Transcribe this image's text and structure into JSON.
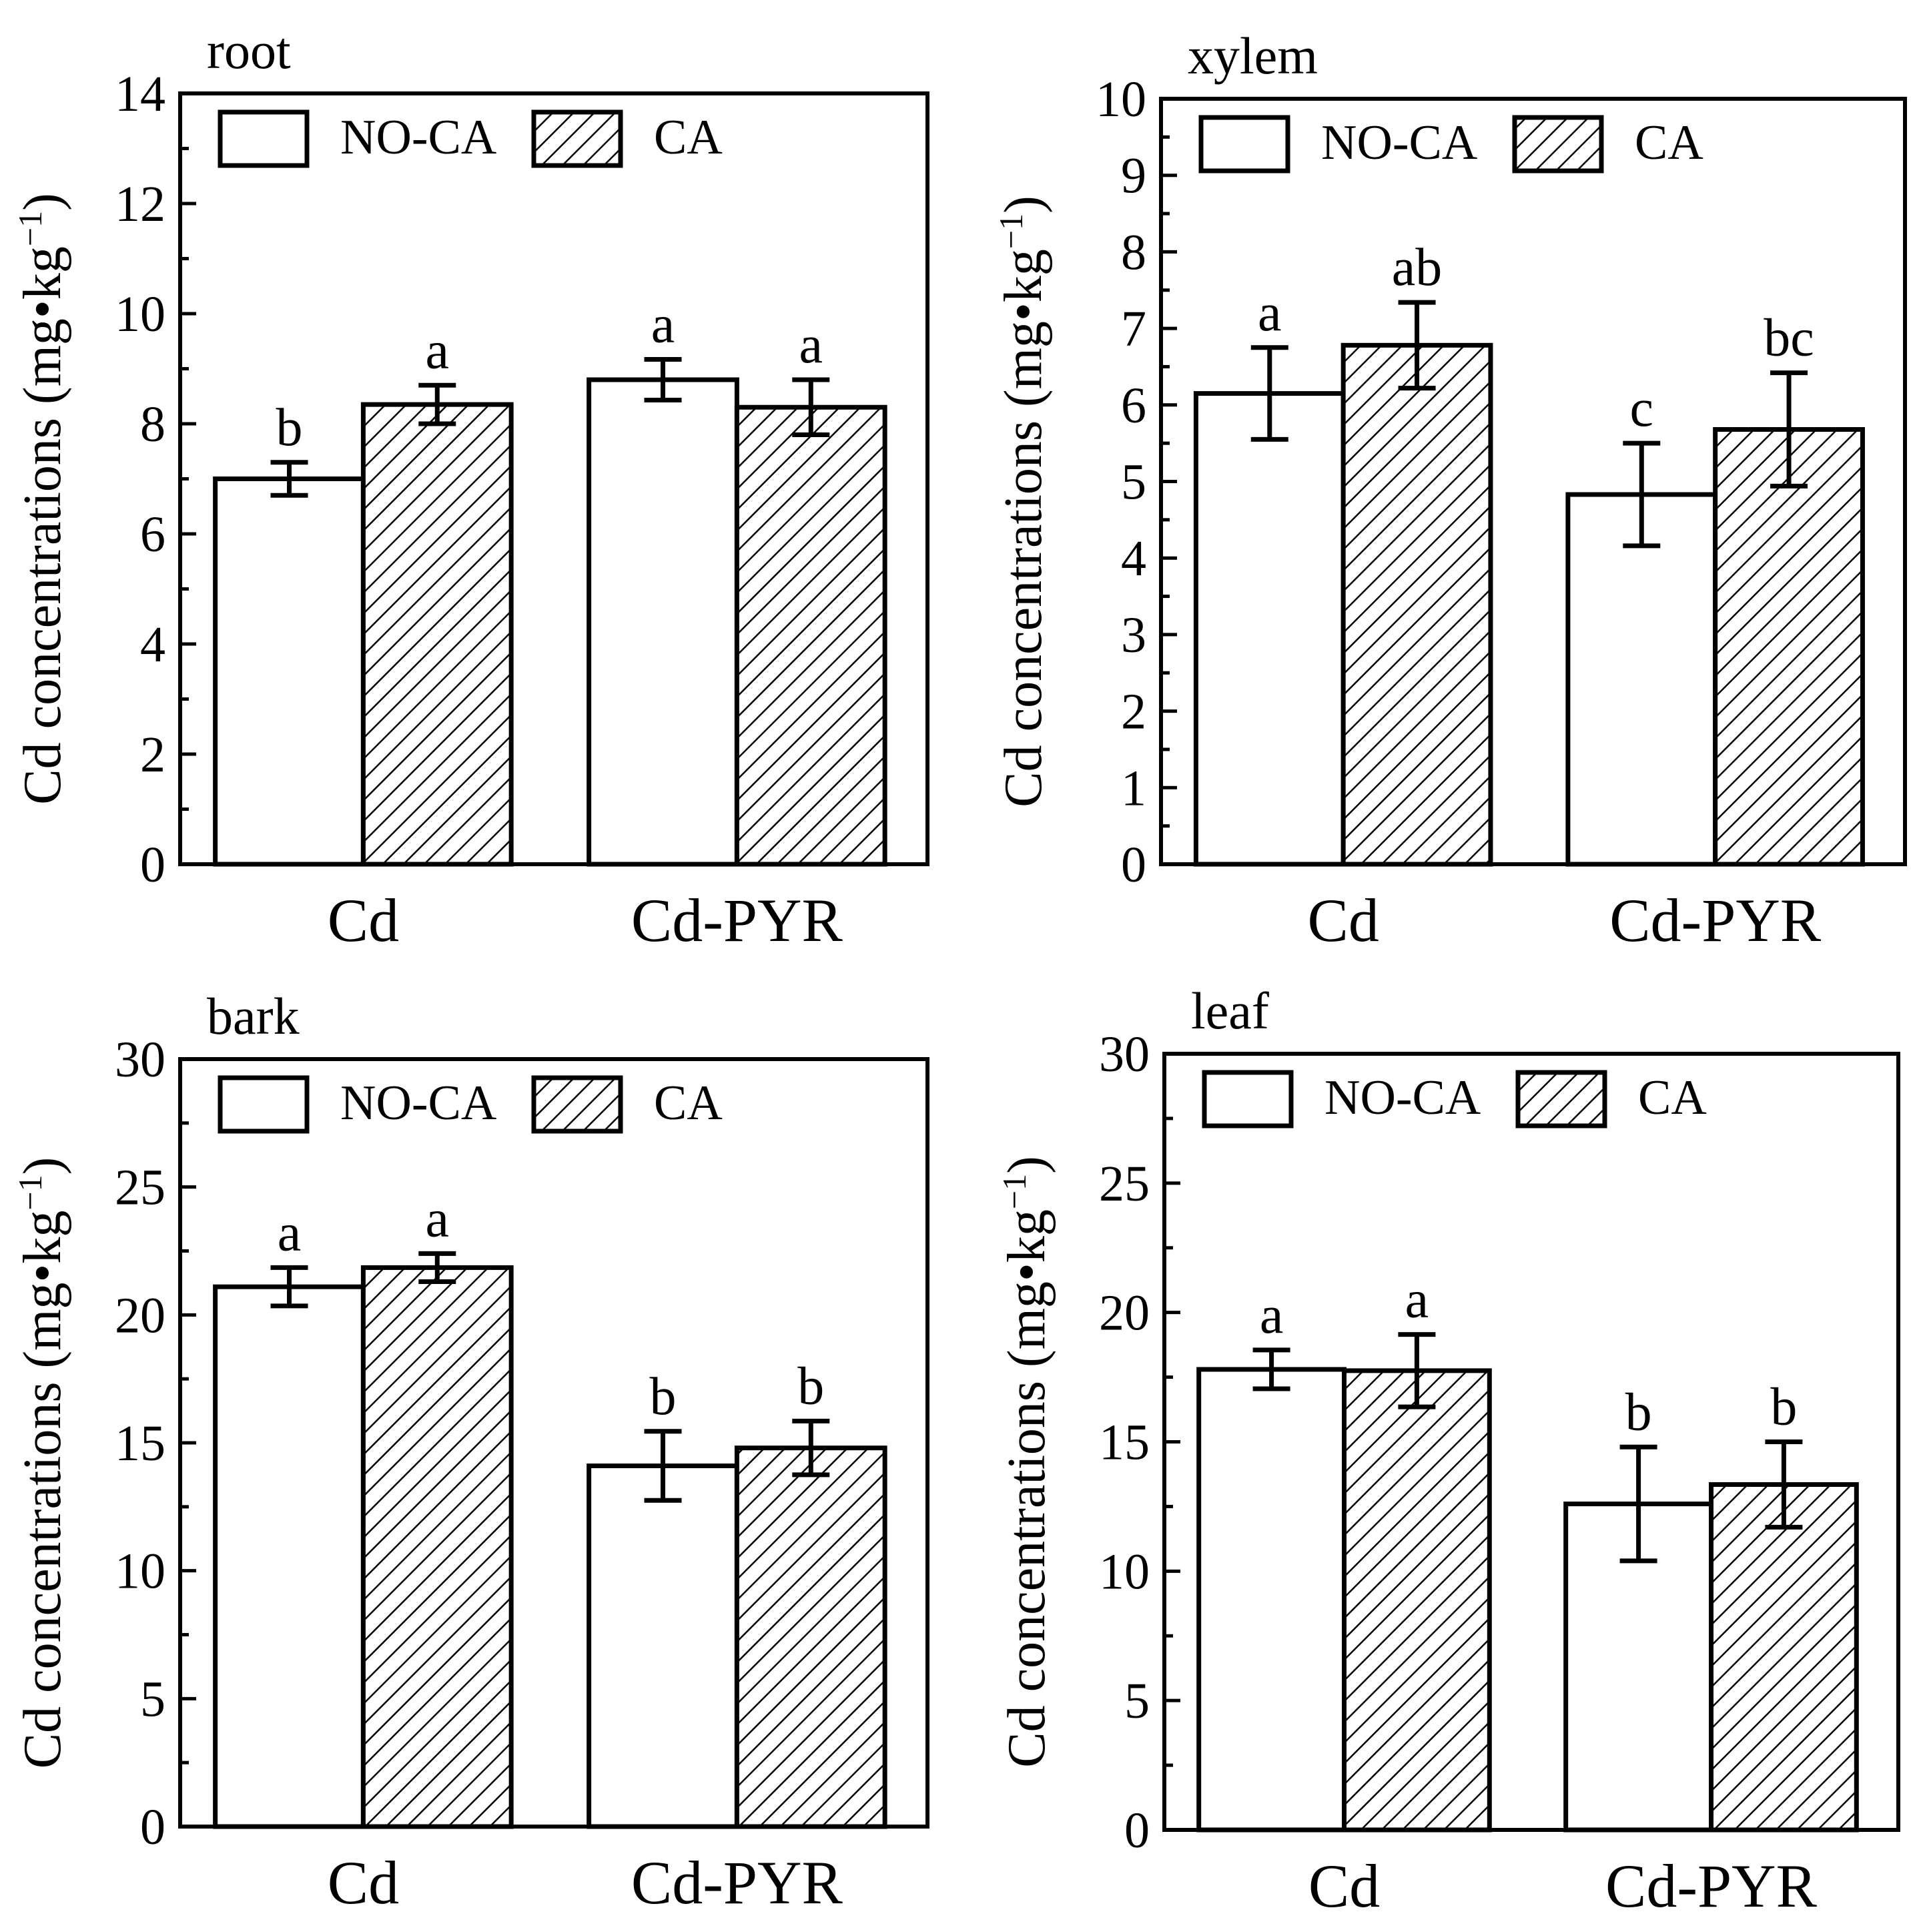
{
  "figure": {
    "background": "#ffffff",
    "ink": "#000000"
  },
  "chart_data": [
    {
      "type": "bar",
      "title": "root",
      "xlabel": "",
      "ylabel": "Cd concentrations〔mg•kg⁻¹〕",
      "ylabel_main": "Cd concentrations",
      "ylabel_unit": "(mg•kg",
      "ylabel_sup": "−1",
      "ylabel_close": ")",
      "categories": [
        "Cd",
        "Cd-PYR"
      ],
      "ylim": [
        0,
        14
      ],
      "yticks": [
        0,
        2,
        4,
        6,
        8,
        10,
        12,
        14
      ],
      "yminor_step": 1,
      "legend": {
        "position": "top-left",
        "entries": [
          "NO-CA",
          "CA"
        ]
      },
      "series": [
        {
          "name": "NO-CA",
          "pattern": "open",
          "values": [
            7.0,
            8.8
          ],
          "errors": [
            0.3,
            0.37
          ],
          "letters": [
            "b",
            "a"
          ]
        },
        {
          "name": "CA",
          "pattern": "hatched",
          "values": [
            8.35,
            8.3
          ],
          "errors": [
            0.35,
            0.5
          ],
          "letters": [
            "a",
            "a"
          ]
        }
      ],
      "grid": false
    },
    {
      "type": "bar",
      "title": "xylem",
      "xlabel": "",
      "ylabel_main": "Cd concentrations",
      "ylabel_unit": "(mg•kg",
      "ylabel_sup": "−1",
      "ylabel_close": ")",
      "categories": [
        "Cd",
        "Cd-PYR"
      ],
      "ylim": [
        0,
        10
      ],
      "yticks": [
        0,
        1,
        2,
        3,
        4,
        5,
        6,
        7,
        8,
        9,
        10
      ],
      "yminor_step": 0.5,
      "legend": {
        "position": "top-left",
        "entries": [
          "NO-CA",
          "CA"
        ]
      },
      "series": [
        {
          "name": "NO-CA",
          "pattern": "open",
          "values": [
            6.15,
            4.83
          ],
          "errors": [
            0.6,
            0.67
          ],
          "letters": [
            "a",
            "c"
          ]
        },
        {
          "name": "CA",
          "pattern": "hatched",
          "values": [
            6.78,
            5.68
          ],
          "errors": [
            0.56,
            0.74
          ],
          "letters": [
            "ab",
            "bc"
          ]
        }
      ],
      "grid": false
    },
    {
      "type": "bar",
      "title": "bark",
      "xlabel": "",
      "ylabel_main": "Cd concentrations",
      "ylabel_unit": "(mg•kg",
      "ylabel_sup": "−1",
      "ylabel_close": ")",
      "categories": [
        "Cd",
        "Cd-PYR"
      ],
      "ylim": [
        0,
        30
      ],
      "yticks": [
        0,
        5,
        10,
        15,
        20,
        25,
        30
      ],
      "yminor_step": 2.5,
      "legend": {
        "position": "top-left",
        "entries": [
          "NO-CA",
          "CA"
        ]
      },
      "series": [
        {
          "name": "NO-CA",
          "pattern": "open",
          "values": [
            21.1,
            14.1
          ],
          "errors": [
            0.75,
            1.35
          ],
          "letters": [
            "a",
            "b"
          ]
        },
        {
          "name": "CA",
          "pattern": "hatched",
          "values": [
            21.85,
            14.8
          ],
          "errors": [
            0.55,
            1.05
          ],
          "letters": [
            "a",
            "b"
          ]
        }
      ],
      "grid": false
    },
    {
      "type": "bar",
      "title": "leaf",
      "xlabel": "",
      "ylabel_main": "Cd concentrations",
      "ylabel_unit": "(mg•kg",
      "ylabel_sup": "−1",
      "ylabel_close": ")",
      "categories": [
        "Cd",
        "Cd-PYR"
      ],
      "ylim": [
        0,
        30
      ],
      "yticks": [
        0,
        5,
        10,
        15,
        20,
        25,
        30
      ],
      "yminor_step": 2.5,
      "legend": {
        "position": "top-left",
        "entries": [
          "NO-CA",
          "CA"
        ]
      },
      "series": [
        {
          "name": "NO-CA",
          "pattern": "open",
          "values": [
            17.8,
            12.6
          ],
          "errors": [
            0.75,
            2.2
          ],
          "letters": [
            "a",
            "b"
          ]
        },
        {
          "name": "CA",
          "pattern": "hatched",
          "values": [
            17.75,
            13.35
          ],
          "errors": [
            1.4,
            1.65
          ],
          "letters": [
            "a",
            "b"
          ]
        }
      ],
      "grid": false
    }
  ]
}
